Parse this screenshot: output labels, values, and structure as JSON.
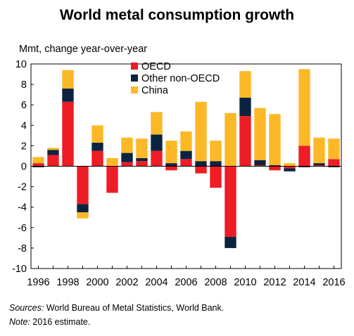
{
  "chart_data": {
    "type": "stacked-bar",
    "title": "World metal consumption growth",
    "ylabel": "Mmt, change year-over-year",
    "xlabel": "",
    "ylim": [
      -10,
      10
    ],
    "yticks": [
      10,
      8,
      6,
      4,
      2,
      0,
      -2,
      -4,
      -6,
      -8,
      -10
    ],
    "x": [
      1996,
      1997,
      1998,
      1999,
      2000,
      2001,
      2002,
      2003,
      2004,
      2005,
      2006,
      2007,
      2008,
      2009,
      2010,
      2011,
      2012,
      2013,
      2014,
      2015,
      2016
    ],
    "xtick_labels": [
      "1996",
      "1998",
      "2000",
      "2002",
      "2004",
      "2006",
      "2008",
      "2010",
      "2012",
      "2014",
      "2016"
    ],
    "legend_position": "top-center",
    "grid": false,
    "series": [
      {
        "name": "OECD",
        "color": "#ee1c24",
        "values": [
          0.3,
          1.1,
          6.3,
          -3.7,
          1.5,
          -2.6,
          0.4,
          0.5,
          1.5,
          -0.4,
          0.7,
          -0.7,
          -2.1,
          -6.9,
          4.9,
          0.1,
          -0.4,
          -0.2,
          2.0,
          0.1,
          0.7
        ]
      },
      {
        "name": "Other non-OECD",
        "color": "#0c2340",
        "values": [
          -0.1,
          0.5,
          1.3,
          -0.8,
          0.8,
          0.0,
          0.9,
          0.3,
          1.6,
          0.3,
          0.8,
          0.5,
          0.5,
          -1.1,
          1.8,
          0.5,
          0.1,
          -0.3,
          -0.1,
          0.2,
          -0.1
        ]
      },
      {
        "name": "China",
        "color": "#fdb827",
        "values": [
          0.6,
          0.2,
          1.8,
          -0.6,
          1.7,
          0.8,
          1.5,
          1.9,
          2.2,
          2.2,
          1.9,
          5.8,
          2.0,
          5.2,
          2.6,
          5.1,
          5.0,
          0.3,
          7.5,
          2.5,
          2.0
        ]
      }
    ]
  },
  "footnotes": {
    "sources_label": "Sources:",
    "sources_text": " World Bureau of Metal Statistics, World Bank.",
    "note_label": "Note:",
    "note_text": " 2016 estimate."
  }
}
